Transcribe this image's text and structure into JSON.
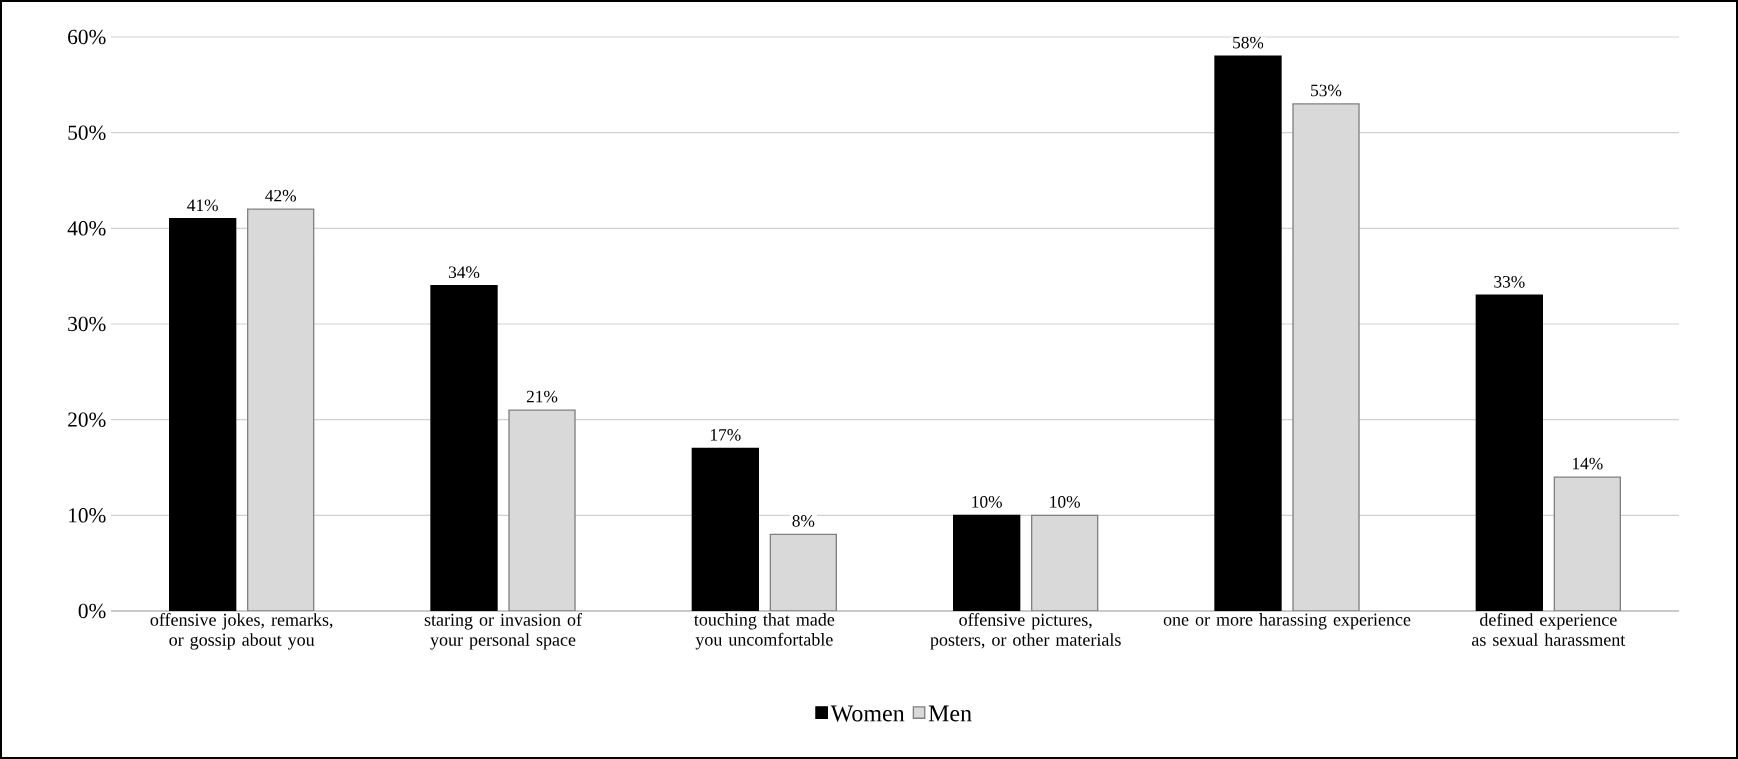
{
  "chart_data": {
    "type": "bar",
    "categories": [
      "offensive jokes, remarks, or gossip about you",
      "staring or invasion of your personal space",
      "touching that made you uncomfortable",
      "offensive pictures, posters, or other materials",
      "one or more harassing experience",
      "defined experience as sexual harassment"
    ],
    "series": [
      {
        "name": "Women",
        "color": "#000000",
        "values": [
          41,
          34,
          17,
          10,
          58,
          33
        ],
        "value_labels": [
          "41%",
          "34%",
          "17%",
          "10%",
          "58%",
          "33%"
        ]
      },
      {
        "name": "Men",
        "color": "#d9d9d9",
        "values": [
          42,
          21,
          8,
          10,
          53,
          14
        ],
        "value_labels": [
          "42%",
          "21%",
          "8%",
          "10%",
          "53%",
          "14%"
        ]
      }
    ],
    "ylim": [
      0,
      60
    ],
    "yticks": [
      {
        "value": 0,
        "label": "0%"
      },
      {
        "value": 10,
        "label": "10%"
      },
      {
        "value": 20,
        "label": "20%"
      },
      {
        "value": 30,
        "label": "30%"
      },
      {
        "value": 40,
        "label": "40%"
      },
      {
        "value": 50,
        "label": "50%"
      },
      {
        "value": 60,
        "label": "60%"
      }
    ],
    "grid": "y",
    "legend": "bottom"
  }
}
